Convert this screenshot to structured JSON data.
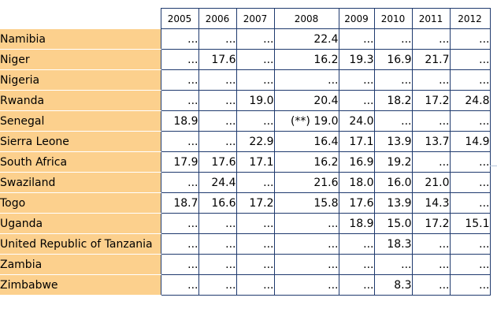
{
  "table": {
    "years": [
      "2005",
      "2006",
      "2007",
      "2008",
      "2009",
      "2010",
      "2011",
      "2012"
    ],
    "rows": [
      {
        "country": "Namibia",
        "values": [
          "...",
          "...",
          "...",
          "22.4",
          "...",
          "...",
          "...",
          "..."
        ]
      },
      {
        "country": "Niger",
        "values": [
          "...",
          "17.6",
          "...",
          "16.2",
          "19.3",
          "16.9",
          "21.7",
          "..."
        ]
      },
      {
        "country": "Nigeria",
        "values": [
          "...",
          "...",
          "...",
          "...",
          "...",
          "...",
          "...",
          "..."
        ]
      },
      {
        "country": "Rwanda",
        "values": [
          "...",
          "...",
          "19.0",
          "20.4",
          "...",
          "18.2",
          "17.2",
          "24.8"
        ]
      },
      {
        "country": "Senegal",
        "values": [
          "18.9",
          "...",
          "...",
          "(**) 19.0",
          "24.0",
          "...",
          "...",
          "..."
        ]
      },
      {
        "country": "Sierra Leone",
        "values": [
          "...",
          "...",
          "22.9",
          "16.4",
          "17.1",
          "13.9",
          "13.7",
          "14.9"
        ]
      },
      {
        "country": "South Africa",
        "values": [
          "17.9",
          "17.6",
          "17.1",
          "16.2",
          "16.9",
          "19.2",
          "...",
          "..."
        ]
      },
      {
        "country": "Swaziland",
        "values": [
          "...",
          "24.4",
          "...",
          "21.6",
          "18.0",
          "16.0",
          "21.0",
          "..."
        ]
      },
      {
        "country": "Togo",
        "values": [
          "18.7",
          "16.6",
          "17.2",
          "15.8",
          "17.6",
          "13.9",
          "14.3",
          "..."
        ]
      },
      {
        "country": "Uganda",
        "values": [
          "...",
          "...",
          "...",
          "...",
          "18.9",
          "15.0",
          "17.2",
          "15.1"
        ]
      },
      {
        "country": "United Republic of Tanzania",
        "values": [
          "...",
          "...",
          "...",
          "...",
          "...",
          "18.3",
          "...",
          "..."
        ]
      },
      {
        "country": "Zambia",
        "values": [
          "...",
          "...",
          "...",
          "...",
          "...",
          "...",
          "...",
          "..."
        ]
      },
      {
        "country": "Zimbabwe",
        "values": [
          "...",
          "...",
          "...",
          "...",
          "...",
          "8.3",
          "...",
          "..."
        ]
      }
    ]
  }
}
